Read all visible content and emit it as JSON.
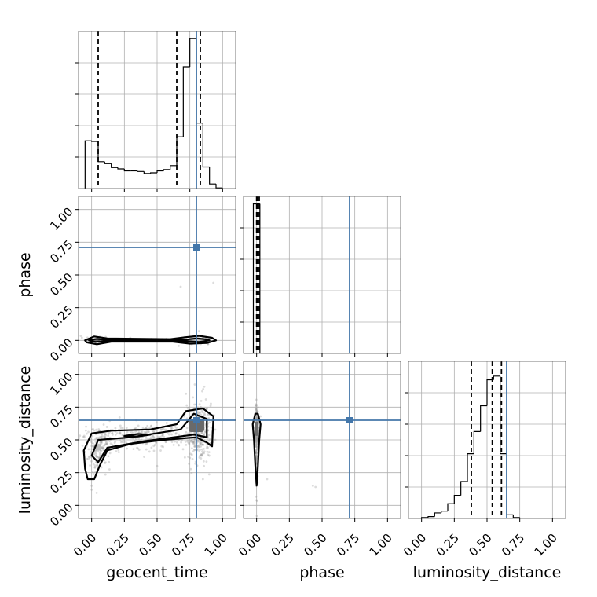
{
  "chart_data": {
    "type": "corner",
    "parameters": [
      "geocent_time",
      "phase",
      "luminosity_distance"
    ],
    "axis_range": [
      -0.1,
      1.1
    ],
    "tick_values": [
      0.0,
      0.25,
      0.5,
      0.75,
      1.0
    ],
    "tick_labels": [
      "0.00",
      "0.25",
      "0.50",
      "0.75",
      "1.00"
    ],
    "grid": true,
    "colors": {
      "truth": "#4477aa",
      "hist": "#000000",
      "scatter": "#9a9a9a"
    },
    "truths": {
      "geocent_time": 0.8,
      "phase": 0.71,
      "luminosity_distance": 0.65
    },
    "histograms": [
      {
        "param": "geocent_time",
        "bin_edges": [
          -0.05,
          0.0,
          0.05,
          0.1,
          0.15,
          0.2,
          0.25,
          0.3,
          0.35,
          0.4,
          0.45,
          0.5,
          0.55,
          0.6,
          0.65,
          0.7,
          0.75,
          0.8,
          0.85,
          0.9,
          0.95,
          1.0
        ],
        "counts": [
          73,
          72,
          41,
          38,
          32,
          30,
          27,
          27,
          26,
          23,
          24,
          27,
          29,
          35,
          79,
          186,
          229,
          100,
          33,
          7,
          1
        ],
        "ymax": 240,
        "quantiles": [
          0.05,
          0.65,
          0.83
        ]
      },
      {
        "param": "phase",
        "bin_edges": [
          -0.025,
          0.0,
          0.025
        ],
        "counts": [
          100,
          100
        ],
        "ymax": 105,
        "quantiles": [
          0.0,
          0.01,
          0.02
        ]
      },
      {
        "param": "luminosity_distance",
        "bin_edges": [
          0.0,
          0.05,
          0.1,
          0.15,
          0.2,
          0.25,
          0.3,
          0.35,
          0.4,
          0.45,
          0.5,
          0.55,
          0.6,
          0.65,
          0.7,
          0.75
        ],
        "counts": [
          1,
          2,
          6,
          8,
          16,
          25,
          40,
          70,
          94,
          122,
          150,
          154,
          70,
          4,
          1
        ],
        "ymax": 170,
        "quantiles": [
          0.38,
          0.54,
          0.61
        ]
      }
    ],
    "scatter_panels": [
      {
        "x": "geocent_time",
        "y": "phase",
        "clusters": [
          {
            "cx": 0.02,
            "cy": 0.0,
            "sx": 0.05,
            "sy": 0.012,
            "n": 60
          },
          {
            "cx": 0.4,
            "cy": 0.0,
            "sx": 0.2,
            "sy": 0.006,
            "n": 60
          },
          {
            "cx": 0.8,
            "cy": 0.0,
            "sx": 0.05,
            "sy": 0.012,
            "n": 110
          }
        ],
        "outliers": [
          [
            0.93,
            0.44
          ],
          [
            0.68,
            0.41
          ],
          [
            0.82,
            0.07
          ]
        ],
        "contours": [
          [
            [
              -0.05,
              0.0
            ],
            [
              0.02,
              0.03
            ],
            [
              0.12,
              0.015
            ],
            [
              0.6,
              0.01
            ],
            [
              0.72,
              0.025
            ],
            [
              0.82,
              0.035
            ],
            [
              0.92,
              0.02
            ],
            [
              0.95,
              0.0
            ],
            [
              0.88,
              -0.02
            ],
            [
              0.75,
              -0.025
            ],
            [
              0.62,
              -0.01
            ],
            [
              0.15,
              -0.01
            ],
            [
              0.04,
              -0.03
            ],
            [
              -0.04,
              -0.015
            ]
          ],
          [
            [
              -0.02,
              0.0
            ],
            [
              0.04,
              0.012
            ],
            [
              0.1,
              0.004
            ],
            [
              0.7,
              0.004
            ],
            [
              0.8,
              0.015
            ],
            [
              0.88,
              0.008
            ],
            [
              0.9,
              0.0
            ],
            [
              0.82,
              -0.012
            ],
            [
              0.72,
              -0.005
            ],
            [
              0.1,
              -0.004
            ],
            [
              0.03,
              -0.012
            ]
          ]
        ],
        "dense_regions": [
          {
            "x0": 0.0,
            "y0": -0.01,
            "x1": 0.06,
            "y1": 0.01
          },
          {
            "x0": 0.74,
            "y0": -0.015,
            "x1": 0.86,
            "y1": 0.015
          }
        ]
      },
      {
        "x": "geocent_time",
        "y": "luminosity_distance",
        "clusters": [
          {
            "cx": 0.05,
            "cy": 0.42,
            "sx": 0.05,
            "sy": 0.08,
            "n": 180
          },
          {
            "cx": 0.4,
            "cy": 0.53,
            "sx": 0.2,
            "sy": 0.05,
            "n": 260
          },
          {
            "cx": 0.82,
            "cy": 0.56,
            "sx": 0.05,
            "sy": 0.12,
            "n": 300
          }
        ],
        "outliers": [
          [
            0.0,
            0.15
          ],
          [
            0.0,
            0.12
          ],
          [
            0.85,
            0.2
          ],
          [
            0.5,
            0.3
          ]
        ],
        "contours": [
          [
            [
              -0.05,
              0.28
            ],
            [
              -0.06,
              0.42
            ],
            [
              0.0,
              0.55
            ],
            [
              0.15,
              0.57
            ],
            [
              0.45,
              0.58
            ],
            [
              0.65,
              0.62
            ],
            [
              0.72,
              0.72
            ],
            [
              0.85,
              0.74
            ],
            [
              0.93,
              0.68
            ],
            [
              0.92,
              0.45
            ],
            [
              0.88,
              0.48
            ],
            [
              0.8,
              0.52
            ],
            [
              0.55,
              0.5
            ],
            [
              0.3,
              0.47
            ],
            [
              0.12,
              0.42
            ],
            [
              0.06,
              0.3
            ],
            [
              0.02,
              0.2
            ],
            [
              -0.03,
              0.2
            ]
          ],
          [
            [
              0.0,
              0.38
            ],
            [
              0.05,
              0.5
            ],
            [
              0.3,
              0.52
            ],
            [
              0.68,
              0.58
            ],
            [
              0.78,
              0.7
            ],
            [
              0.88,
              0.66
            ],
            [
              0.88,
              0.52
            ],
            [
              0.78,
              0.54
            ],
            [
              0.4,
              0.49
            ],
            [
              0.12,
              0.44
            ],
            [
              0.05,
              0.33
            ]
          ],
          [
            [
              0.25,
              0.53
            ],
            [
              0.35,
              0.545
            ],
            [
              0.45,
              0.54
            ],
            [
              0.35,
              0.525
            ]
          ]
        ],
        "dense_regions": [
          {
            "x0": 0.74,
            "y0": 0.56,
            "x1": 0.86,
            "y1": 0.66
          },
          {
            "x0": 0.03,
            "y0": 0.42,
            "x1": 0.07,
            "y1": 0.47
          }
        ]
      },
      {
        "x": "phase",
        "y": "luminosity_distance",
        "clusters": [
          {
            "cx": 0.0,
            "cy": 0.58,
            "sx": 0.006,
            "sy": 0.08,
            "n": 220
          },
          {
            "cx": 0.0,
            "cy": 0.3,
            "sx": 0.004,
            "sy": 0.12,
            "n": 60
          }
        ],
        "outliers": [
          [
            0.45,
            0.14
          ],
          [
            0.43,
            0.15
          ],
          [
            0.08,
            0.2
          ],
          [
            0.03,
            0.68
          ]
        ],
        "contours": [
          [
            [
              -0.02,
              0.5
            ],
            [
              -0.03,
              0.62
            ],
            [
              -0.01,
              0.7
            ],
            [
              0.01,
              0.7
            ],
            [
              0.03,
              0.62
            ],
            [
              0.02,
              0.5
            ],
            [
              0.01,
              0.3
            ],
            [
              0.0,
              0.15
            ],
            [
              -0.01,
              0.3
            ]
          ]
        ],
        "dense_regions": [
          {
            "x0": -0.015,
            "y0": 0.53,
            "x1": 0.015,
            "y1": 0.64
          }
        ]
      }
    ]
  }
}
